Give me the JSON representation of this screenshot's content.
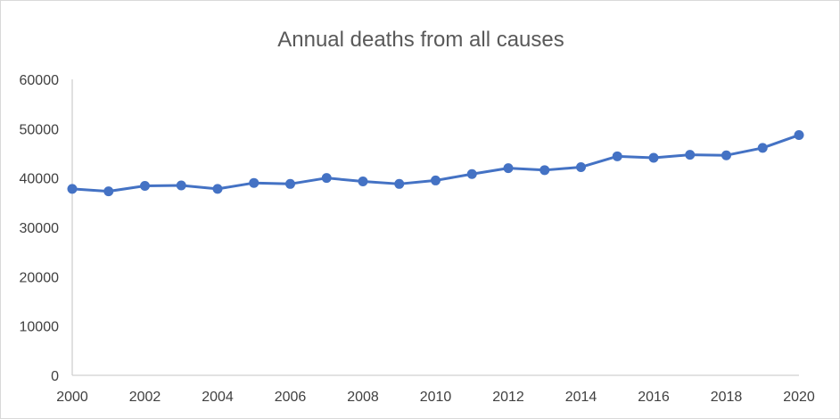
{
  "chart_data": {
    "type": "line",
    "title": "Annual deaths from all causes",
    "xlabel": "",
    "ylabel": "",
    "x_ticks": [
      "2000",
      "2002",
      "2004",
      "2006",
      "2008",
      "2010",
      "2012",
      "2014",
      "2016",
      "2018",
      "2020"
    ],
    "y_ticks": [
      "0",
      "10000",
      "20000",
      "30000",
      "40000",
      "50000",
      "60000"
    ],
    "xlim": [
      2000,
      2020
    ],
    "ylim": [
      0,
      60000
    ],
    "grid": false,
    "legend": "none",
    "color": "#4472c4",
    "x": [
      2000,
      2001,
      2002,
      2003,
      2004,
      2005,
      2006,
      2007,
      2008,
      2009,
      2010,
      2011,
      2012,
      2013,
      2014,
      2015,
      2016,
      2017,
      2018,
      2019,
      2020
    ],
    "series": [
      {
        "values": [
          37800,
          37300,
          38400,
          38500,
          37800,
          39000,
          38800,
          40000,
          39300,
          38800,
          39500,
          40800,
          42000,
          41600,
          42200,
          44400,
          44100,
          44700,
          44600,
          46100,
          48700
        ]
      }
    ]
  }
}
